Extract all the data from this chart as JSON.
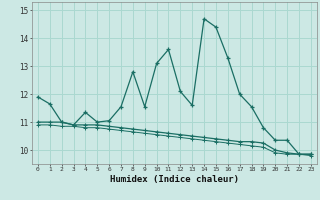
{
  "title": "",
  "xlabel": "Humidex (Indice chaleur)",
  "ylabel": "",
  "background_color": "#cce8e4",
  "grid_color": "#aad8d0",
  "line_color": "#1a6e64",
  "xlim": [
    -0.5,
    23.5
  ],
  "ylim": [
    9.5,
    15.3
  ],
  "xtick_labels": [
    "0",
    "1",
    "2",
    "3",
    "4",
    "5",
    "6",
    "7",
    "8",
    "9",
    "10",
    "11",
    "12",
    "13",
    "14",
    "15",
    "16",
    "17",
    "18",
    "19",
    "20",
    "21",
    "22",
    "23"
  ],
  "yticks": [
    10,
    11,
    12,
    13,
    14,
    15
  ],
  "series1_x": [
    0,
    1,
    2,
    3,
    4,
    5,
    6,
    7,
    8,
    9,
    10,
    11,
    12,
    13,
    14,
    15,
    16,
    17,
    18,
    19,
    20,
    21,
    22,
    23
  ],
  "series1_y": [
    11.9,
    11.65,
    11.0,
    10.9,
    11.35,
    11.0,
    11.05,
    11.55,
    12.8,
    11.55,
    13.1,
    13.6,
    12.1,
    11.6,
    14.7,
    14.4,
    13.3,
    12.0,
    11.55,
    10.8,
    10.35,
    10.35,
    9.85,
    9.85
  ],
  "series2_x": [
    0,
    1,
    2,
    3,
    4,
    5,
    6,
    7,
    8,
    9,
    10,
    11,
    12,
    13,
    14,
    15,
    16,
    17,
    18,
    19,
    20,
    21,
    22,
    23
  ],
  "series2_y": [
    11.0,
    11.0,
    11.0,
    10.9,
    10.9,
    10.9,
    10.85,
    10.8,
    10.75,
    10.7,
    10.65,
    10.6,
    10.55,
    10.5,
    10.45,
    10.4,
    10.35,
    10.3,
    10.3,
    10.25,
    10.0,
    9.9,
    9.85,
    9.85
  ],
  "series3_x": [
    0,
    1,
    2,
    3,
    4,
    5,
    6,
    7,
    8,
    9,
    10,
    11,
    12,
    13,
    14,
    15,
    16,
    17,
    18,
    19,
    20,
    21,
    22,
    23
  ],
  "series3_y": [
    10.9,
    10.9,
    10.85,
    10.85,
    10.8,
    10.8,
    10.75,
    10.7,
    10.65,
    10.6,
    10.55,
    10.5,
    10.45,
    10.4,
    10.35,
    10.3,
    10.25,
    10.2,
    10.15,
    10.1,
    9.9,
    9.85,
    9.85,
    9.8
  ]
}
